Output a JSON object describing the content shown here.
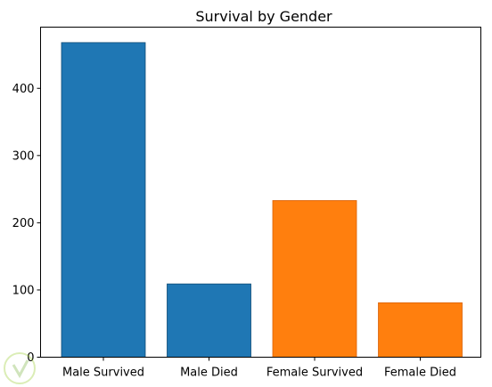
{
  "chart_data": {
    "type": "bar",
    "title": "Survival by Gender",
    "xlabel": "",
    "ylabel": "",
    "categories": [
      "Male Survived",
      "Male Died",
      "Female Survived",
      "Female Died"
    ],
    "values": [
      468,
      109,
      233,
      81
    ],
    "bar_colors": [
      "#1f77b4",
      "#1f77b4",
      "#ff7f0e",
      "#ff7f0e"
    ],
    "edge_colors": [
      "#0d4a75",
      "#0d4a75",
      "#d9620a",
      "#d9620a"
    ],
    "ylim": [
      0,
      491
    ],
    "yticks": [
      0,
      100,
      200,
      300,
      400
    ],
    "grid": false
  }
}
